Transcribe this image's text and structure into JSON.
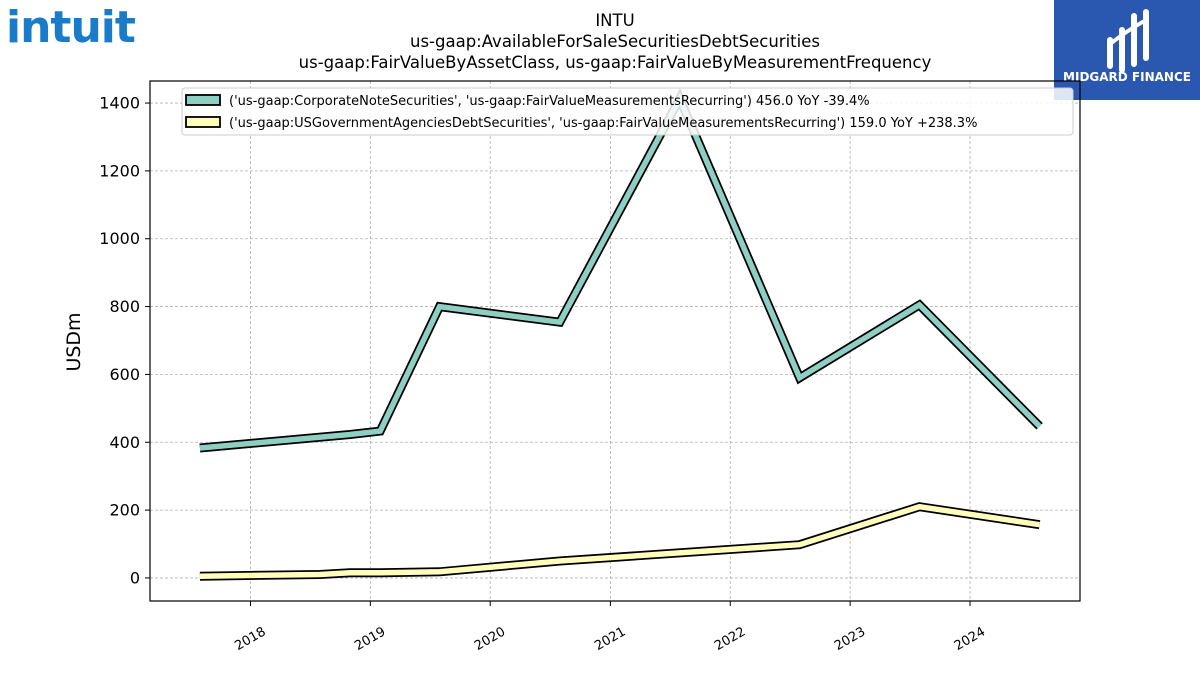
{
  "logos": {
    "left_text": "intuit",
    "right_text": "MIDGARD FINANCE",
    "right_bg": "#2a57b0",
    "left_color": "#1a7bc9"
  },
  "chart_data": {
    "type": "line",
    "title": "INTU",
    "subtitle": "us-gaap:AvailableForSaleSecuritiesDebtSecurities",
    "subtitle2": "us-gaap:FairValueByAssetClass, us-gaap:FairValueByMeasurementFrequency",
    "xlabel": "",
    "ylabel": "USDm",
    "ylim": [
      -68,
      1465
    ],
    "xlim": [
      "2017-03-01",
      "2024-12-01"
    ],
    "yticks": [
      0,
      200,
      400,
      600,
      800,
      1000,
      1200,
      1400
    ],
    "xticks": [
      "2018",
      "2019",
      "2020",
      "2021",
      "2022",
      "2023",
      "2024"
    ],
    "grid": true,
    "legend_position": "top",
    "series": [
      {
        "name": "('us-gaap:CorporateNoteSecurities', 'us-gaap:FairValueMeasurementsRecurring') 456.0 YoY -39.4%",
        "color": "#8ecfc4",
        "x": [
          "2017-07-31",
          "2018-10-31",
          "2019-01-31",
          "2019-07-31",
          "2020-07-31",
          "2021-07-31",
          "2022-07-31",
          "2023-07-31",
          "2024-07-31"
        ],
        "y": [
          383,
          423,
          433,
          800,
          754,
          1413,
          590,
          805,
          447
        ]
      },
      {
        "name": "('us-gaap:USGovernmentAgenciesDebtSecurities', 'us-gaap:FairValueMeasurementsRecurring') 159.0 YoY +238.3%",
        "color": "#ffffbb",
        "x": [
          "2017-07-31",
          "2018-07-31",
          "2018-10-31",
          "2019-01-31",
          "2019-07-31",
          "2020-07-31",
          "2022-07-31",
          "2023-07-31",
          "2024-07-31"
        ],
        "y": [
          5,
          10,
          15,
          15,
          18,
          50,
          98,
          210,
          157
        ]
      }
    ]
  }
}
